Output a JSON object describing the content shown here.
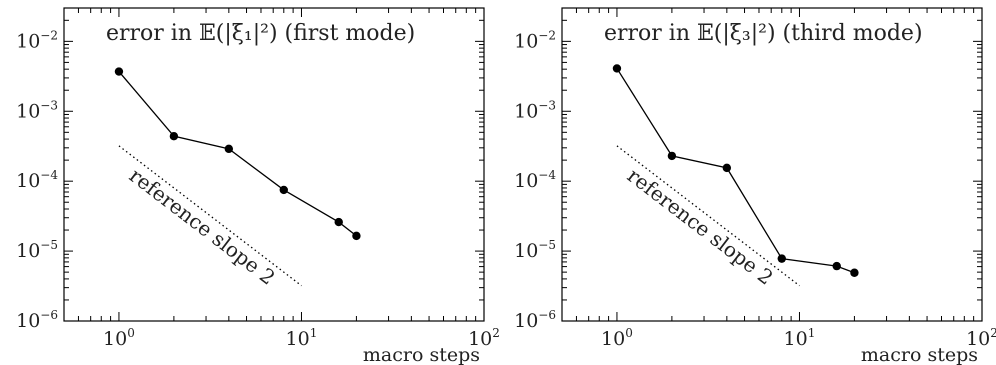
{
  "chart_data": [
    {
      "type": "line",
      "title": "error in 𝔼(|ξ₁|²) (first mode)",
      "xlabel": "macro steps",
      "ylabel": "",
      "xscale": "log",
      "yscale": "log",
      "xlim": [
        0.5,
        100
      ],
      "ylim": [
        1e-06,
        0.03
      ],
      "xticks": [
        1,
        10,
        100
      ],
      "yticks": [
        1e-06,
        1e-05,
        0.0001,
        0.001,
        0.01
      ],
      "xtick_labels": [
        "10^0",
        "10^1",
        "10^2"
      ],
      "ytick_labels": [
        "10^-6",
        "10^-5",
        "10^-4",
        "10^-3",
        "10^-2"
      ],
      "grid": false,
      "series": [
        {
          "x": [
            1,
            2,
            4,
            8,
            16,
            20
          ],
          "y": [
            0.0037,
            0.00044,
            0.00029,
            7.5e-05,
            2.6e-05,
            1.65e-05
          ],
          "style": "solid-markers",
          "color": "#000000"
        },
        {
          "x": [
            1,
            10
          ],
          "y": [
            0.00032,
            3.2e-06
          ],
          "style": "dotted",
          "color": "#000000"
        }
      ],
      "annotations": [
        {
          "text": "reference slope 2",
          "series_index": 1
        }
      ]
    },
    {
      "type": "line",
      "title": "error in 𝔼(|ξ₃|²) (third mode)",
      "xlabel": "macro steps",
      "ylabel": "",
      "xscale": "log",
      "yscale": "log",
      "xlim": [
        0.5,
        100
      ],
      "ylim": [
        1e-06,
        0.03
      ],
      "xticks": [
        1,
        10,
        100
      ],
      "yticks": [
        1e-06,
        1e-05,
        0.0001,
        0.001,
        0.01
      ],
      "xtick_labels": [
        "10^0",
        "10^1",
        "10^2"
      ],
      "ytick_labels": [
        "10^-6",
        "10^-5",
        "10^-4",
        "10^-3",
        "10^-2"
      ],
      "grid": false,
      "series": [
        {
          "x": [
            1,
            2,
            4,
            8,
            16,
            20
          ],
          "y": [
            0.0041,
            0.00023,
            0.000155,
            7.8e-06,
            6.1e-06,
            4.9e-06
          ],
          "style": "solid-markers",
          "color": "#000000"
        },
        {
          "x": [
            1,
            10
          ],
          "y": [
            0.00032,
            3.2e-06
          ],
          "style": "dotted",
          "color": "#000000"
        }
      ],
      "annotations": [
        {
          "text": "reference slope 2",
          "series_index": 1
        }
      ]
    }
  ]
}
